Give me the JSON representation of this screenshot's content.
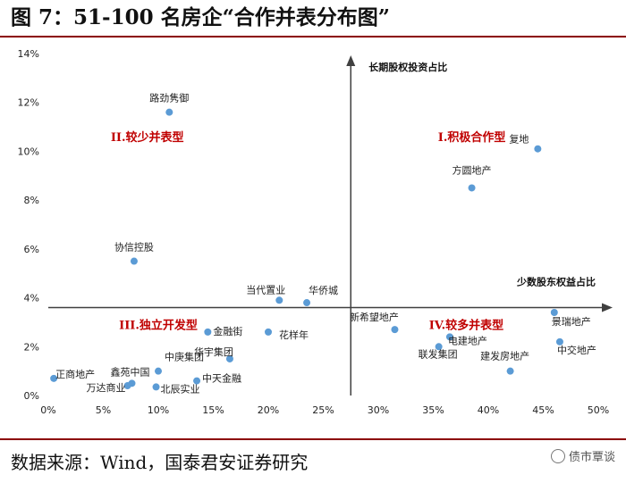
{
  "title": "图 7：51-100 名房企“合作并表分布图”",
  "source": "数据来源：Wind，国泰君安证券研究",
  "watermark": "债市覃谈",
  "chart_data": {
    "type": "scatter",
    "xlim": [
      0,
      50
    ],
    "ylim": [
      0,
      14
    ],
    "x_ticks": [
      "0%",
      "5%",
      "10%",
      "15%",
      "20%",
      "25%",
      "30%",
      "35%",
      "40%",
      "45%",
      "50%"
    ],
    "y_ticks": [
      "0%",
      "2%",
      "4%",
      "6%",
      "8%",
      "10%",
      "12%",
      "14%"
    ],
    "quadrant_axes": {
      "vertical_x": 27.5,
      "horizontal_y": 3.6
    },
    "axis_labels": {
      "y": "长期股权投资占比",
      "x": "少数股东权益占比"
    },
    "quadrants": [
      {
        "label": "I.积极合作型",
        "x": 38.5,
        "y": 10.6
      },
      {
        "label": "II.较少并表型",
        "x": 9.0,
        "y": 10.6
      },
      {
        "label": "III.独立开发型",
        "x": 10.0,
        "y": 2.9
      },
      {
        "label": "IV.较多并表型",
        "x": 38.0,
        "y": 2.9
      }
    ],
    "marker_color": "#5b9bd5",
    "quadrant_label_color": "#c00000",
    "points": [
      {
        "name": "路劲隽御",
        "x": 11.0,
        "y": 11.6
      },
      {
        "name": "协信控股",
        "x": 7.8,
        "y": 5.5
      },
      {
        "name": "复地",
        "x": 44.5,
        "y": 10.1
      },
      {
        "name": "方圆地产",
        "x": 38.5,
        "y": 8.5
      },
      {
        "name": "当代置业",
        "x": 21.0,
        "y": 3.9
      },
      {
        "name": "华侨城",
        "x": 23.5,
        "y": 3.8
      },
      {
        "name": "金融街",
        "x": 14.5,
        "y": 2.6
      },
      {
        "name": "华宇集团",
        "x": 16.5,
        "y": 1.5
      },
      {
        "name": "花样年",
        "x": 20.0,
        "y": 2.6
      },
      {
        "name": "中庚集团",
        "x": 10.0,
        "y": 1.0
      },
      {
        "name": "正商地产",
        "x": 0.5,
        "y": 0.7
      },
      {
        "name": "鑫苑中国",
        "x": 7.6,
        "y": 0.5
      },
      {
        "name": "万达商业",
        "x": 7.2,
        "y": 0.4
      },
      {
        "name": "北辰实业",
        "x": 9.8,
        "y": 0.35
      },
      {
        "name": "中天金融",
        "x": 13.5,
        "y": 0.6
      },
      {
        "name": "新希望地产",
        "x": 31.5,
        "y": 2.7
      },
      {
        "name": "电建地产",
        "x": 36.5,
        "y": 2.4
      },
      {
        "name": "联发集团",
        "x": 35.5,
        "y": 2.0
      },
      {
        "name": "建发房地产",
        "x": 42.0,
        "y": 1.0
      },
      {
        "name": "景瑞地产",
        "x": 46.0,
        "y": 3.4
      },
      {
        "name": "中交地产",
        "x": 46.5,
        "y": 2.2
      }
    ]
  }
}
